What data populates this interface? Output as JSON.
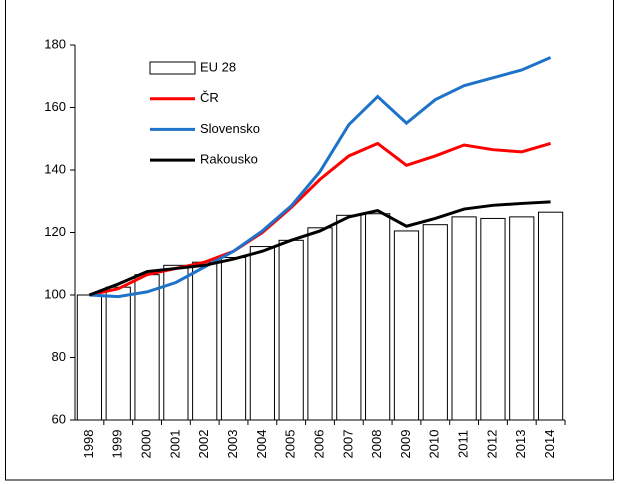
{
  "chart_data": {
    "type": "bar_line",
    "categories": [
      "1998",
      "1999",
      "2000",
      "2001",
      "2002",
      "2003",
      "2004",
      "2005",
      "2006",
      "2007",
      "2008",
      "2009",
      "2010",
      "2011",
      "2012",
      "2013",
      "2014"
    ],
    "ylim": [
      60,
      180
    ],
    "yticks": [
      60,
      80,
      100,
      120,
      140,
      160,
      180
    ],
    "series": [
      {
        "name": "EU 28",
        "kind": "bar",
        "color": "#ffffff",
        "values": [
          100,
          102.5,
          106.5,
          109.5,
          110.5,
          112,
          115.5,
          117.5,
          121.5,
          125.5,
          126,
          120.5,
          122.5,
          125,
          124.5,
          125,
          126.5
        ]
      },
      {
        "name": "ČR",
        "kind": "line",
        "color": "#ff0000",
        "values": [
          100,
          102,
          106.5,
          108.5,
          110.5,
          114,
          120,
          128,
          137,
          144.5,
          148.5,
          141.5,
          144.5,
          148,
          146.5,
          145.8,
          148.5
        ]
      },
      {
        "name": "Slovensko",
        "kind": "line",
        "color": "#1e73c8",
        "values": [
          100,
          99.5,
          101,
          104,
          109,
          114,
          120.5,
          128.5,
          139.5,
          154.5,
          163.5,
          155,
          162.5,
          167,
          169.5,
          172,
          176
        ]
      },
      {
        "name": "Rakousko",
        "kind": "line",
        "color": "#000000",
        "values": [
          100,
          103.5,
          107.5,
          108.5,
          109.5,
          111.5,
          114,
          117.5,
          120.5,
          125,
          127,
          122,
          124.5,
          127.5,
          128.7,
          129.3,
          129.8
        ]
      }
    ]
  }
}
